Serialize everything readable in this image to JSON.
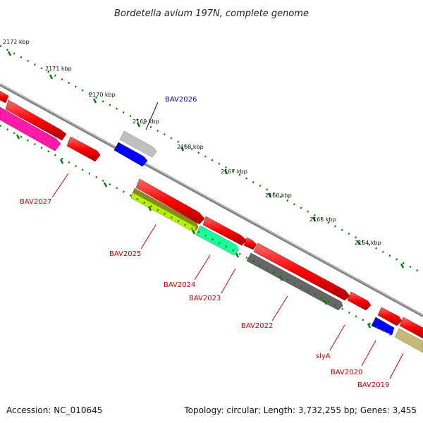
{
  "title": "Bordetella avium 197N, complete genome",
  "footer": {
    "accession": "Accession: NC_010645",
    "topology": "Topology: circular; Length: 3,732,255 bp; Genes: 3,455"
  },
  "ruler_labels": [
    "2172 kbp",
    "2171 kbp",
    "2170 kbp",
    "2169 kbp",
    "2168 kbp",
    "2167 kbp",
    "2166 kbp",
    "2165 kbp",
    "2164 kbp"
  ],
  "genes": {
    "bav2027": "BAV2027",
    "bav2026": "BAV2026",
    "bav2025": "BAV2025",
    "bav2024": "BAV2024",
    "bav2023": "BAV2023",
    "bav2022": "BAV2022",
    "slya": "slyA",
    "bav2020": "BAV2020",
    "bav2019": "BAV2019"
  },
  "colors": {
    "forward_gene": "#ff0000",
    "label_red": "#cc0000",
    "label_blue": "#0000cc",
    "backbone": "#808080",
    "tick_green": "#008000"
  }
}
